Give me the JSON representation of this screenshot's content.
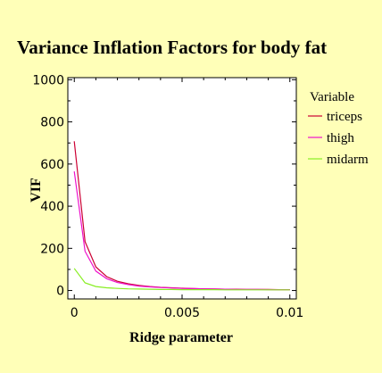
{
  "chart_data": {
    "type": "line",
    "title": "Variance Inflation Factors for body fat",
    "xlabel": "Ridge parameter",
    "ylabel": "VIF",
    "xlim": [
      -0.0003,
      0.0103
    ],
    "ylim": [
      -40,
      1010
    ],
    "xticks": [
      0,
      0.005,
      0.01
    ],
    "xtick_labels": [
      "0",
      "0.005",
      "0.01"
    ],
    "yticks": [
      0,
      200,
      400,
      600,
      800,
      1000
    ],
    "ytick_labels": [
      "0",
      "200",
      "400",
      "600",
      "800",
      "1000"
    ],
    "x": [
      0,
      0.0005,
      0.001,
      0.0015,
      0.002,
      0.0025,
      0.003,
      0.0035,
      0.004,
      0.0045,
      0.005,
      0.0055,
      0.006,
      0.0065,
      0.007,
      0.0075,
      0.008,
      0.0085,
      0.009,
      0.0095,
      0.01
    ],
    "series": [
      {
        "name": "triceps",
        "color": "#cc0033",
        "values": [
          708,
          232,
          112,
          66,
          44,
          32,
          24,
          19,
          15,
          13,
          11,
          9,
          8,
          7,
          6,
          6,
          5,
          5,
          5,
          4,
          4
        ]
      },
      {
        "name": "thigh",
        "color": "#ee11cc",
        "values": [
          565,
          186,
          92,
          56,
          38,
          28,
          21,
          17,
          14,
          12,
          10,
          9,
          8,
          7,
          6,
          5,
          5,
          5,
          4,
          4,
          4
        ]
      },
      {
        "name": "midarm",
        "color": "#88ee22",
        "values": [
          105,
          36,
          19,
          13,
          10,
          8,
          7,
          6,
          5,
          5,
          4,
          4,
          4,
          4,
          3,
          3,
          3,
          3,
          3,
          3,
          3
        ]
      }
    ],
    "legend": {
      "title": "Variable",
      "position": "right"
    },
    "grid": false
  }
}
